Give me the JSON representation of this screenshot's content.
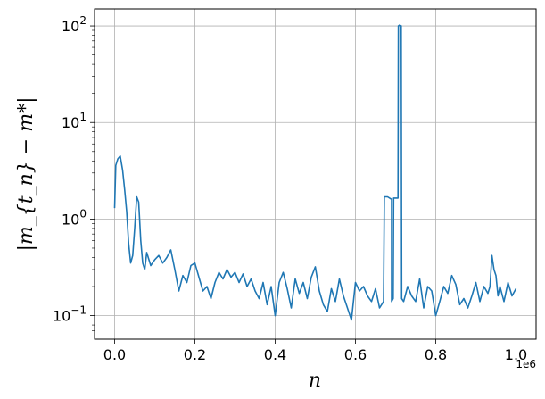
{
  "chart_data": {
    "type": "line",
    "title": "",
    "xlabel": "n",
    "ylabel": "|m_{t_n} − m*|",
    "x_offset_label": "1e6",
    "x_tick_labels": [
      "0.0",
      "0.2",
      "0.4",
      "0.6",
      "0.8",
      "1.0"
    ],
    "y_tick_labels": [
      {
        "base": "10",
        "exp": "−1"
      },
      {
        "base": "10",
        "exp": "0"
      },
      {
        "base": "10",
        "exp": "1"
      },
      {
        "base": "10",
        "exp": "2"
      }
    ],
    "xlim": [
      -0.05,
      1.05
    ],
    "ylim": [
      0.057,
      150
    ],
    "yscale": "log",
    "grid": true,
    "line_color": "#1f77b4",
    "series": [
      {
        "x": [
          0.0,
          0.003,
          0.008,
          0.014,
          0.02,
          0.025,
          0.03,
          0.035,
          0.04,
          0.045,
          0.05,
          0.055,
          0.06,
          0.065,
          0.07,
          0.075,
          0.08,
          0.09,
          0.1,
          0.11,
          0.12,
          0.13,
          0.14,
          0.15,
          0.16,
          0.17,
          0.18,
          0.19,
          0.2,
          0.21,
          0.22,
          0.23,
          0.24,
          0.25,
          0.26,
          0.27,
          0.28,
          0.29,
          0.3,
          0.31,
          0.32,
          0.33,
          0.34,
          0.35,
          0.36,
          0.37,
          0.38,
          0.39,
          0.4,
          0.41,
          0.42,
          0.43,
          0.44,
          0.45,
          0.46,
          0.47,
          0.48,
          0.49,
          0.5,
          0.51,
          0.52,
          0.53,
          0.54,
          0.55,
          0.56,
          0.57,
          0.58,
          0.59,
          0.6,
          0.61,
          0.62,
          0.63,
          0.64,
          0.65,
          0.66,
          0.67,
          0.672,
          0.673,
          0.68,
          0.69,
          0.69,
          0.694,
          0.695,
          0.7,
          0.706,
          0.707,
          0.71,
          0.714,
          0.715,
          0.72,
          0.73,
          0.74,
          0.75,
          0.76,
          0.77,
          0.78,
          0.79,
          0.8,
          0.81,
          0.82,
          0.83,
          0.84,
          0.85,
          0.86,
          0.87,
          0.88,
          0.89,
          0.9,
          0.91,
          0.92,
          0.93,
          0.935,
          0.94,
          0.945,
          0.95,
          0.955,
          0.96,
          0.97,
          0.98,
          0.99,
          1.0
        ],
        "y": [
          1.3,
          3.6,
          4.2,
          4.5,
          3.2,
          2.0,
          1.2,
          0.55,
          0.35,
          0.42,
          0.8,
          1.7,
          1.5,
          0.6,
          0.35,
          0.3,
          0.45,
          0.33,
          0.38,
          0.42,
          0.35,
          0.4,
          0.48,
          0.3,
          0.18,
          0.26,
          0.22,
          0.33,
          0.35,
          0.25,
          0.18,
          0.2,
          0.15,
          0.22,
          0.28,
          0.24,
          0.3,
          0.25,
          0.28,
          0.22,
          0.27,
          0.2,
          0.24,
          0.18,
          0.15,
          0.22,
          0.13,
          0.2,
          0.1,
          0.22,
          0.28,
          0.19,
          0.12,
          0.24,
          0.17,
          0.22,
          0.15,
          0.25,
          0.32,
          0.18,
          0.13,
          0.11,
          0.19,
          0.14,
          0.24,
          0.16,
          0.12,
          0.09,
          0.22,
          0.18,
          0.2,
          0.16,
          0.14,
          0.19,
          0.12,
          0.14,
          1.7,
          1.7,
          1.7,
          1.6,
          0.14,
          0.15,
          1.65,
          1.65,
          1.65,
          100,
          102,
          100,
          0.15,
          0.14,
          0.2,
          0.16,
          0.14,
          0.24,
          0.12,
          0.2,
          0.18,
          0.1,
          0.14,
          0.2,
          0.17,
          0.26,
          0.21,
          0.13,
          0.15,
          0.12,
          0.16,
          0.22,
          0.14,
          0.2,
          0.17,
          0.2,
          0.42,
          0.3,
          0.26,
          0.16,
          0.2,
          0.14,
          0.22,
          0.16,
          0.19
        ]
      }
    ]
  }
}
